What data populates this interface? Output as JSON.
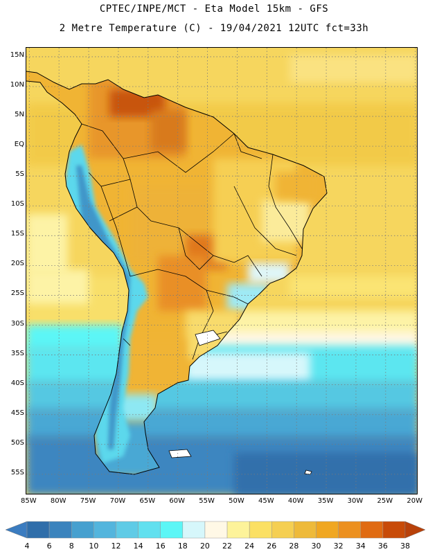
{
  "header": {
    "line1": "CPTEC/INPE/MCT -  Eta Model 15km - GFS",
    "line2": "2 Metre Temperature (C) - 19/04/2021 12UTC fct=33h"
  },
  "map": {
    "lat_ticks": [
      "15N",
      "10N",
      "5N",
      "EQ",
      "5S",
      "10S",
      "15S",
      "20S",
      "25S",
      "30S",
      "35S",
      "40S",
      "45S",
      "50S",
      "55S"
    ],
    "lon_ticks": [
      "85W",
      "80W",
      "75W",
      "70W",
      "65W",
      "60W",
      "55W",
      "50W",
      "45W",
      "40W",
      "35W",
      "30W",
      "25W",
      "20W"
    ],
    "lat_values": [
      15,
      10,
      5,
      0,
      -5,
      -10,
      -15,
      -20,
      -25,
      -30,
      -35,
      -40,
      -45,
      -50,
      -55
    ],
    "lon_values": [
      -85,
      -80,
      -75,
      -70,
      -65,
      -60,
      -55,
      -50,
      -45,
      -40,
      -35,
      -30,
      -25,
      -20
    ],
    "extent": {
      "lon_min": -85.5,
      "lon_max": -19.5,
      "lat_min": -58.5,
      "lat_max": 16.5
    }
  },
  "colorbar": {
    "labels": [
      "4",
      "6",
      "8",
      "10",
      "12",
      "14",
      "16",
      "18",
      "20",
      "22",
      "24",
      "26",
      "28",
      "30",
      "32",
      "34",
      "36",
      "38"
    ],
    "colors": [
      "#2f6eaa",
      "#3a83bd",
      "#46a0cf",
      "#53b5dd",
      "#5fcbe6",
      "#61e0ef",
      "#5cf6f6",
      "#d6f7fb",
      "#fff8e6",
      "#fdf39a",
      "#fbe064",
      "#f5cf52",
      "#eeba3a",
      "#f0a721",
      "#ec901f",
      "#e06b12",
      "#c84b08"
    ],
    "low_color": "#3b7cc0",
    "high_color": "#b8410a"
  }
}
